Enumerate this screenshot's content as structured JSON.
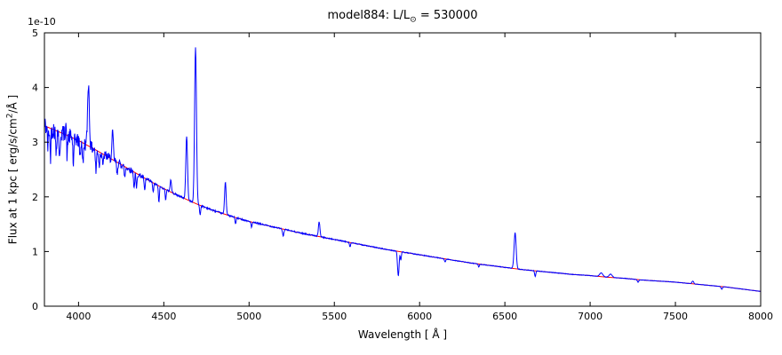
{
  "figure": {
    "title": {
      "prefix": "model884: L/L",
      "sub": "⊙",
      "suffix": " = 530000"
    },
    "offset_text": "1e-10",
    "xlabel": "Wavelength [ Å ]",
    "ylabel": {
      "prefix": "Flux at 1 kpc [ erg/s/cm",
      "sup": "2",
      "suffix": "/Å ]"
    }
  },
  "chart_data": {
    "type": "line",
    "title": "model884: L/L⊙ = 530000",
    "xlabel": "Wavelength [ Å ]",
    "ylabel": "Flux at 1 kpc [ erg/s/cm^2/Å ]",
    "y_scale_factor": "1e-10",
    "xlim": [
      3800,
      8000
    ],
    "ylim": [
      0,
      5
    ],
    "x_ticks": [
      4000,
      4500,
      5000,
      5500,
      6000,
      6500,
      7000,
      7500,
      8000
    ],
    "x_tick_labels": [
      "4000",
      "4500",
      "5000",
      "5500",
      "6000",
      "6500",
      "7000",
      "7500",
      "8000"
    ],
    "y_ticks": [
      0,
      1,
      2,
      3,
      4,
      5
    ],
    "y_tick_labels": [
      "0",
      "1",
      "2",
      "3",
      "4",
      "5"
    ],
    "grid": false,
    "legend": "none",
    "series": [
      {
        "name": "model spectrum",
        "color": "#0000ff",
        "width": 1
      },
      {
        "name": "continuum fit",
        "color": "#ff0000",
        "width": 1
      }
    ],
    "continuum_points": [
      [
        3800,
        3.3
      ],
      [
        3900,
        3.17
      ],
      [
        4000,
        3.03
      ],
      [
        4100,
        2.86
      ],
      [
        4200,
        2.68
      ],
      [
        4300,
        2.5
      ],
      [
        4400,
        2.32
      ],
      [
        4500,
        2.15
      ],
      [
        4600,
        2.0
      ],
      [
        4700,
        1.86
      ],
      [
        4800,
        1.74
      ],
      [
        4900,
        1.64
      ],
      [
        5000,
        1.55
      ],
      [
        5100,
        1.48
      ],
      [
        5200,
        1.41
      ],
      [
        5300,
        1.34
      ],
      [
        5400,
        1.28
      ],
      [
        5500,
        1.22
      ],
      [
        5600,
        1.16
      ],
      [
        5700,
        1.1
      ],
      [
        5800,
        1.04
      ],
      [
        5900,
        0.99
      ],
      [
        6000,
        0.94
      ],
      [
        6100,
        0.89
      ],
      [
        6200,
        0.84
      ],
      [
        6300,
        0.79
      ],
      [
        6400,
        0.75
      ],
      [
        6500,
        0.71
      ],
      [
        6600,
        0.67
      ],
      [
        6700,
        0.64
      ],
      [
        6800,
        0.61
      ],
      [
        6900,
        0.58
      ],
      [
        7000,
        0.56
      ],
      [
        7100,
        0.53
      ],
      [
        7200,
        0.51
      ],
      [
        7300,
        0.48
      ],
      [
        7400,
        0.46
      ],
      [
        7500,
        0.44
      ],
      [
        7600,
        0.41
      ],
      [
        7700,
        0.38
      ],
      [
        7800,
        0.35
      ],
      [
        7900,
        0.31
      ],
      [
        8000,
        0.27
      ]
    ],
    "spectral_lines": [
      {
        "center": 3820,
        "amplitude": -0.35,
        "width": 3
      },
      {
        "center": 3835,
        "amplitude": -0.5,
        "width": 3
      },
      {
        "center": 3868,
        "amplitude": -0.4,
        "width": 3
      },
      {
        "center": 3889,
        "amplitude": -0.55,
        "width": 3
      },
      {
        "center": 3926,
        "amplitude": 0.25,
        "width": 3
      },
      {
        "center": 3933,
        "amplitude": -0.4,
        "width": 3
      },
      {
        "center": 3970,
        "amplitude": -0.5,
        "width": 3
      },
      {
        "center": 4009,
        "amplitude": -0.28,
        "width": 3
      },
      {
        "center": 4026,
        "amplitude": -0.4,
        "width": 3
      },
      {
        "center": 4058,
        "amplitude": 1.15,
        "width": 5
      },
      {
        "center": 4102,
        "amplitude": -0.4,
        "width": 3
      },
      {
        "center": 4121,
        "amplitude": -0.25,
        "width": 3
      },
      {
        "center": 4144,
        "amplitude": -0.22,
        "width": 3
      },
      {
        "center": 4200,
        "amplitude": 0.5,
        "width": 4
      },
      {
        "center": 4226,
        "amplitude": -0.22,
        "width": 3
      },
      {
        "center": 4271,
        "amplitude": -0.2,
        "width": 3
      },
      {
        "center": 4326,
        "amplitude": -0.3,
        "width": 3
      },
      {
        "center": 4340,
        "amplitude": -0.28,
        "width": 3
      },
      {
        "center": 4388,
        "amplitude": -0.25,
        "width": 3
      },
      {
        "center": 4438,
        "amplitude": -0.18,
        "width": 3
      },
      {
        "center": 4471,
        "amplitude": -0.3,
        "width": 3
      },
      {
        "center": 4511,
        "amplitude": -0.18,
        "width": 3
      },
      {
        "center": 4541,
        "amplitude": 0.22,
        "width": 4
      },
      {
        "center": 4634,
        "amplitude": 1.15,
        "width": 5
      },
      {
        "center": 4686,
        "amplitude": 2.85,
        "width": 5.5
      },
      {
        "center": 4713,
        "amplitude": -0.18,
        "width": 3
      },
      {
        "center": 4861,
        "amplitude": 0.6,
        "width": 4.5
      },
      {
        "center": 4921,
        "amplitude": -0.12,
        "width": 3
      },
      {
        "center": 5015,
        "amplitude": -0.1,
        "width": 3
      },
      {
        "center": 5200,
        "amplitude": -0.12,
        "width": 4
      },
      {
        "center": 5411,
        "amplitude": 0.27,
        "width": 4.5
      },
      {
        "center": 5592,
        "amplitude": -0.08,
        "width": 3
      },
      {
        "center": 5875,
        "amplitude": -0.45,
        "width": 4.5
      },
      {
        "center": 5890,
        "amplitude": -0.15,
        "width": 3
      },
      {
        "center": 6150,
        "amplitude": -0.05,
        "width": 4
      },
      {
        "center": 6347,
        "amplitude": -0.06,
        "width": 3
      },
      {
        "center": 6560,
        "amplitude": 0.66,
        "width": 6
      },
      {
        "center": 6678,
        "amplitude": -0.1,
        "width": 3.5
      },
      {
        "center": 7065,
        "amplitude": 0.07,
        "width": 9
      },
      {
        "center": 7120,
        "amplitude": 0.06,
        "width": 9
      },
      {
        "center": 7281,
        "amplitude": -0.05,
        "width": 4
      },
      {
        "center": 7602,
        "amplitude": 0.05,
        "width": 5
      },
      {
        "center": 7772,
        "amplitude": -0.05,
        "width": 4
      }
    ],
    "noise": {
      "base_rel": 0.008,
      "blue_extra_rel": 0.05,
      "blue_limit": 4500,
      "seed": 42,
      "sample_step": 2
    }
  },
  "frame": {
    "axis_color": "#000000",
    "background": "#ffffff"
  }
}
